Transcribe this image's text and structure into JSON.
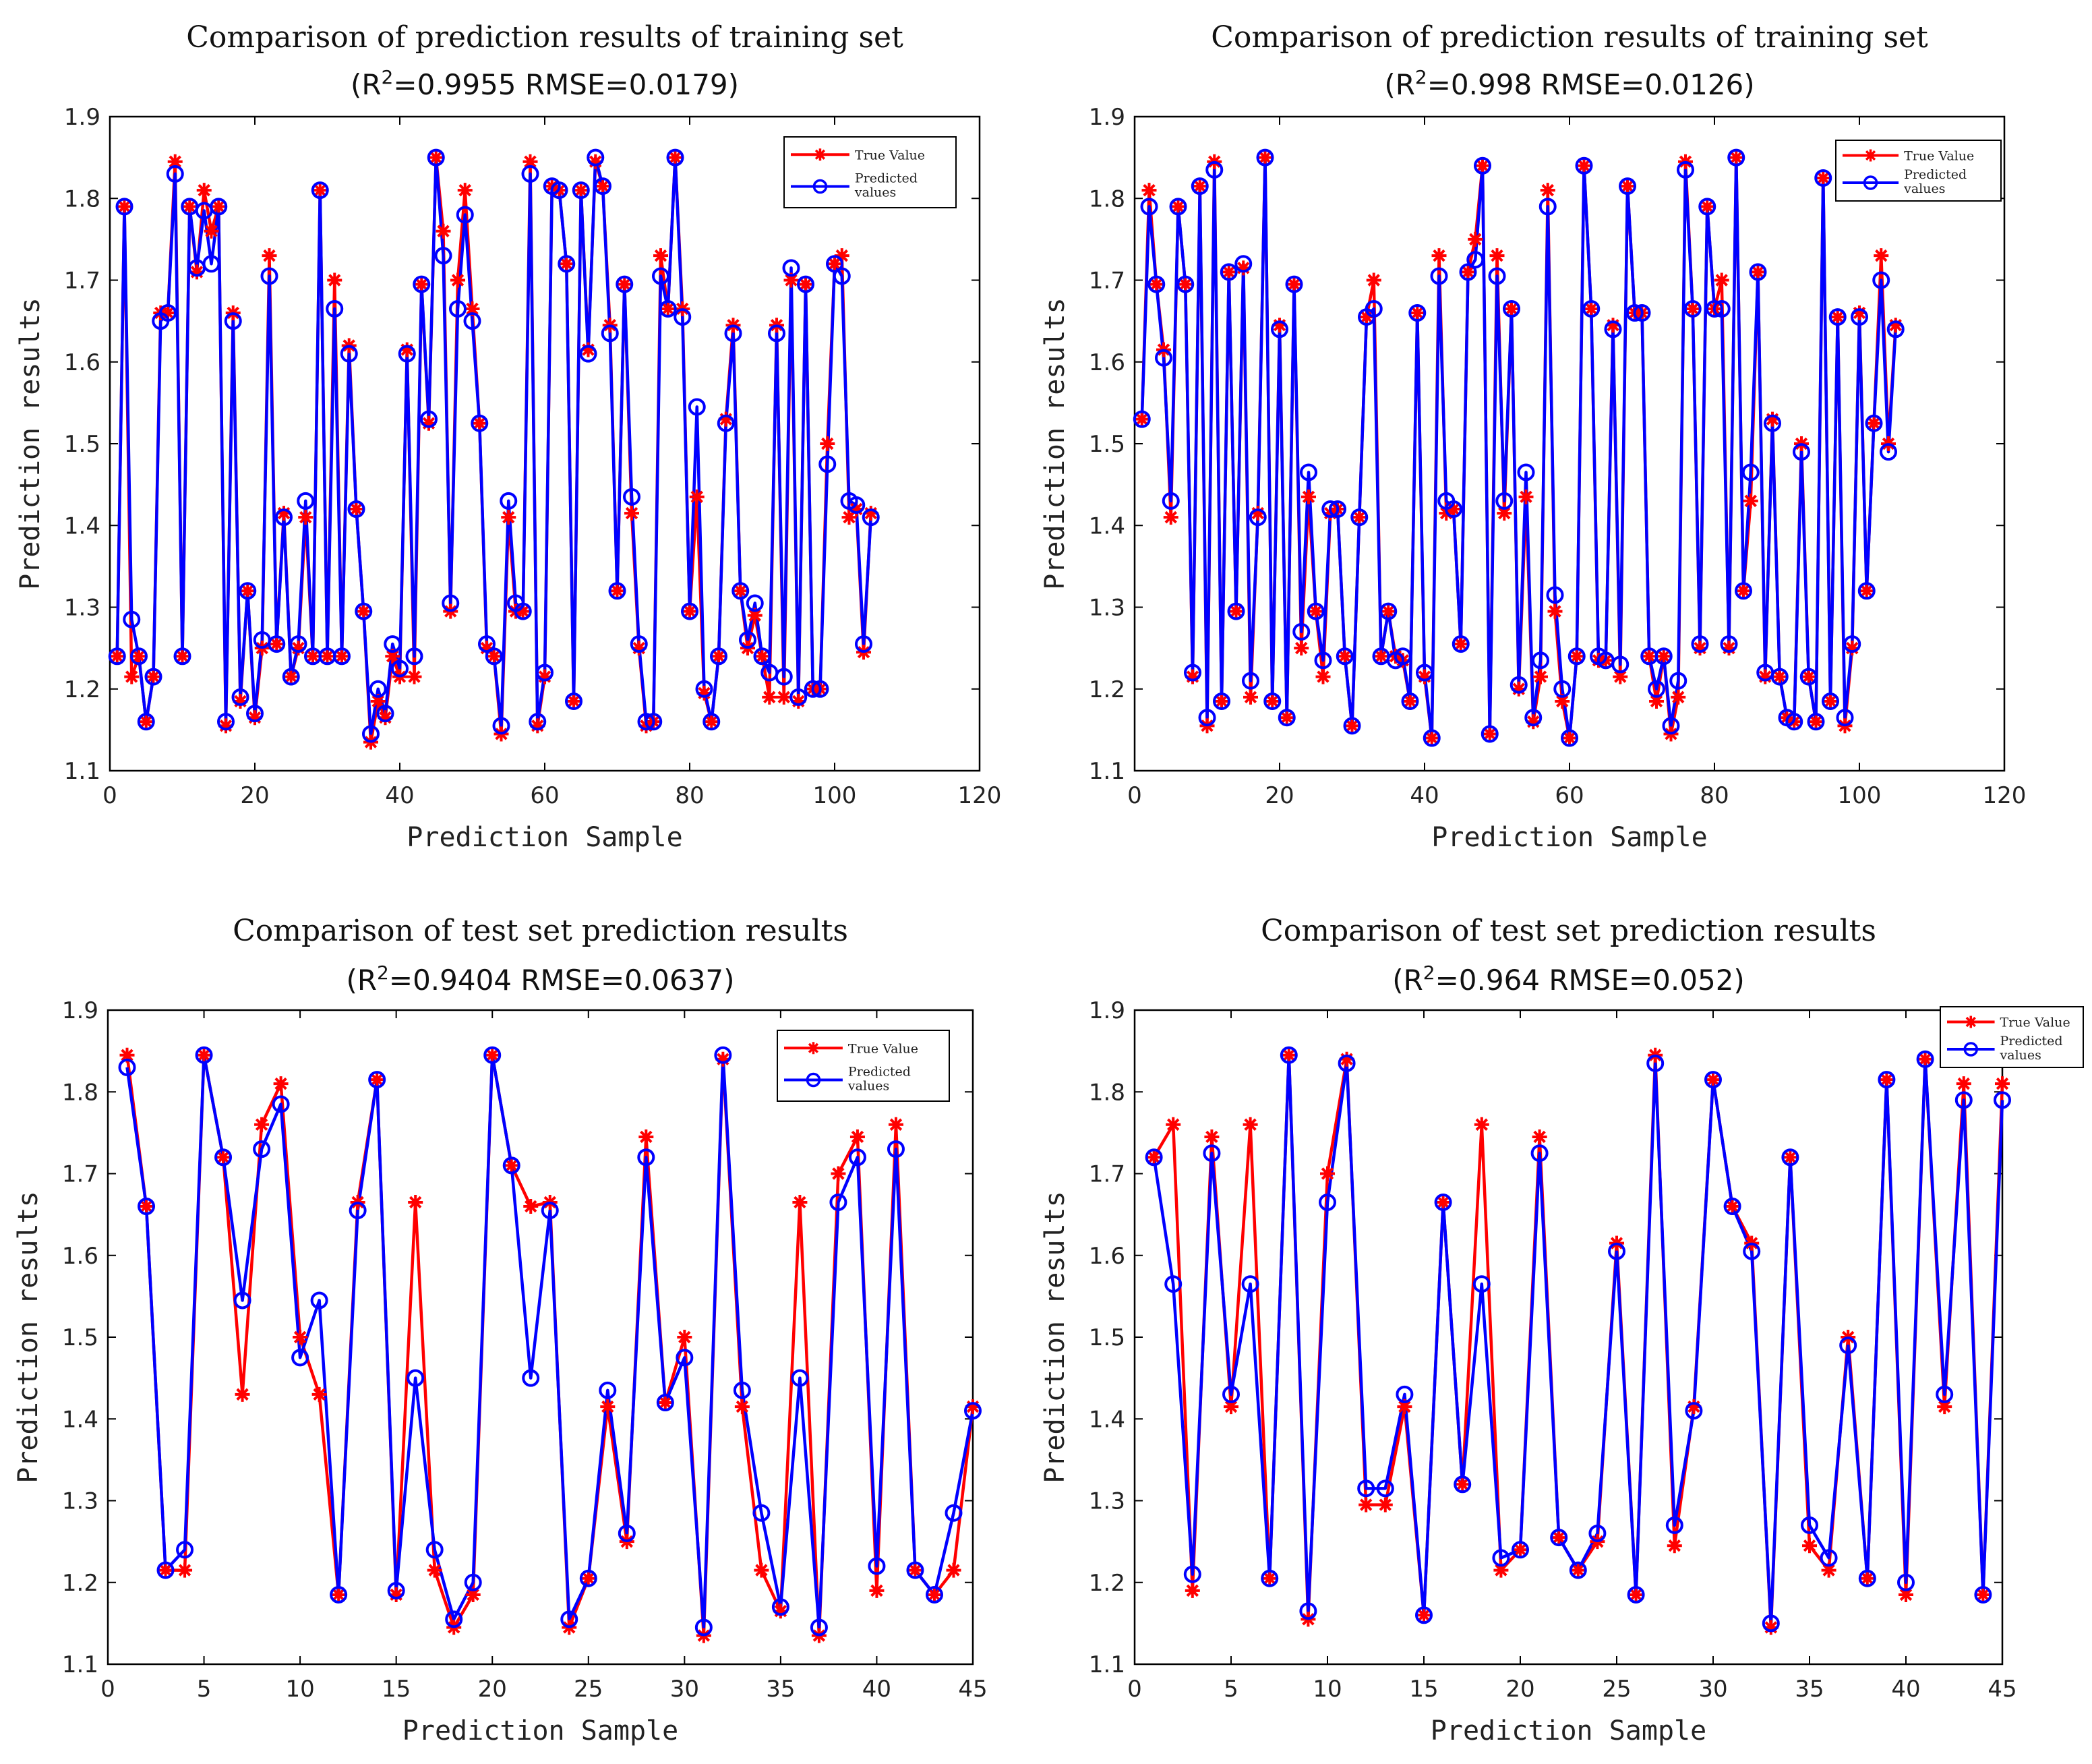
{
  "legend_labels": [
    "True Value",
    "Predicted\nvalues"
  ],
  "colors": {
    "true": "#ff0000",
    "pred": "#0000ff",
    "axis": "#000000"
  },
  "chart_data": [
    {
      "type": "line",
      "title": "Comparison of prediction results of training set",
      "subtitle_prefix": "(R",
      "subtitle_sup": "2",
      "subtitle_rest": "=0.9955 RMSE=0.0179)",
      "xlabel": "Prediction Sample",
      "ylabel": "Prediction results",
      "xlim": [
        0,
        120
      ],
      "ylim": [
        1.1,
        1.9
      ],
      "xticks": [
        0,
        20,
        40,
        60,
        80,
        100,
        120
      ],
      "yticks": [
        1.1,
        1.2,
        1.3,
        1.4,
        1.5,
        1.6,
        1.7,
        1.8,
        1.9
      ],
      "legend": "top-right",
      "series": [
        {
          "name": "True Value",
          "values": [
            1.24,
            1.79,
            1.215,
            1.24,
            1.16,
            1.215,
            1.66,
            1.66,
            1.845,
            1.24,
            1.79,
            1.71,
            1.81,
            1.76,
            1.79,
            1.155,
            1.66,
            1.185,
            1.32,
            1.165,
            1.25,
            1.73,
            1.255,
            1.415,
            1.215,
            1.25,
            1.41,
            1.24,
            1.81,
            1.24,
            1.7,
            1.24,
            1.62,
            1.42,
            1.295,
            1.135,
            1.185,
            1.165,
            1.24,
            1.215,
            1.615,
            1.215,
            1.695,
            1.525,
            1.85,
            1.76,
            1.295,
            1.7,
            1.81,
            1.665,
            1.525,
            1.25,
            1.24,
            1.145,
            1.41,
            1.295,
            1.295,
            1.845,
            1.155,
            1.215,
            1.815,
            1.81,
            1.72,
            1.185,
            1.81,
            1.615,
            1.845,
            1.815,
            1.645,
            1.32,
            1.695,
            1.415,
            1.25,
            1.155,
            1.16,
            1.73,
            1.665,
            1.85,
            1.665,
            1.295,
            1.435,
            1.195,
            1.16,
            1.24,
            1.53,
            1.645,
            1.32,
            1.25,
            1.29,
            1.24,
            1.19,
            1.645,
            1.19,
            1.7,
            1.185,
            1.695,
            1.2,
            1.2,
            1.5,
            1.72,
            1.73,
            1.41,
            1.42,
            1.245,
            1.415
          ]
        },
        {
          "name": "Predicted values",
          "values": [
            1.24,
            1.79,
            1.285,
            1.24,
            1.16,
            1.215,
            1.65,
            1.66,
            1.83,
            1.24,
            1.79,
            1.715,
            1.785,
            1.72,
            1.79,
            1.16,
            1.65,
            1.19,
            1.32,
            1.17,
            1.26,
            1.705,
            1.255,
            1.41,
            1.215,
            1.255,
            1.43,
            1.24,
            1.81,
            1.24,
            1.665,
            1.24,
            1.61,
            1.42,
            1.295,
            1.145,
            1.2,
            1.17,
            1.255,
            1.225,
            1.61,
            1.24,
            1.695,
            1.53,
            1.85,
            1.73,
            1.305,
            1.665,
            1.78,
            1.65,
            1.525,
            1.255,
            1.24,
            1.155,
            1.43,
            1.305,
            1.295,
            1.83,
            1.16,
            1.22,
            1.815,
            1.81,
            1.72,
            1.185,
            1.81,
            1.61,
            1.85,
            1.815,
            1.635,
            1.32,
            1.695,
            1.435,
            1.255,
            1.16,
            1.16,
            1.705,
            1.665,
            1.85,
            1.655,
            1.295,
            1.545,
            1.2,
            1.16,
            1.24,
            1.525,
            1.635,
            1.32,
            1.26,
            1.305,
            1.24,
            1.22,
            1.635,
            1.215,
            1.715,
            1.19,
            1.695,
            1.2,
            1.2,
            1.475,
            1.72,
            1.705,
            1.43,
            1.425,
            1.255,
            1.41
          ]
        }
      ]
    },
    {
      "type": "line",
      "title": "Comparison of prediction results of training set",
      "subtitle_prefix": "(R",
      "subtitle_sup": "2",
      "subtitle_rest": "=0.998 RMSE=0.0126)",
      "xlabel": "Prediction Sample",
      "ylabel": "Prediction results",
      "xlim": [
        0,
        120
      ],
      "ylim": [
        1.1,
        1.9
      ],
      "xticks": [
        0,
        20,
        40,
        60,
        80,
        100,
        120
      ],
      "yticks": [
        1.1,
        1.2,
        1.3,
        1.4,
        1.5,
        1.6,
        1.7,
        1.8,
        1.9
      ],
      "legend": "top-right",
      "series": [
        {
          "name": "True Value",
          "values": [
            1.53,
            1.81,
            1.695,
            1.615,
            1.41,
            1.79,
            1.695,
            1.215,
            1.815,
            1.155,
            1.845,
            1.185,
            1.71,
            1.295,
            1.715,
            1.19,
            1.415,
            1.85,
            1.185,
            1.645,
            1.165,
            1.695,
            1.25,
            1.435,
            1.295,
            1.215,
            1.415,
            1.42,
            1.24,
            1.155,
            1.41,
            1.655,
            1.7,
            1.24,
            1.295,
            1.24,
            1.235,
            1.185,
            1.66,
            1.215,
            1.14,
            1.73,
            1.415,
            1.42,
            1.255,
            1.71,
            1.75,
            1.84,
            1.145,
            1.73,
            1.415,
            1.665,
            1.2,
            1.435,
            1.16,
            1.215,
            1.81,
            1.295,
            1.185,
            1.14,
            1.24,
            1.84,
            1.665,
            1.235,
            1.235,
            1.645,
            1.215,
            1.815,
            1.66,
            1.66,
            1.24,
            1.185,
            1.24,
            1.145,
            1.19,
            1.845,
            1.665,
            1.25,
            1.79,
            1.665,
            1.7,
            1.25,
            1.85,
            1.32,
            1.43,
            1.71,
            1.215,
            1.53,
            1.215,
            1.165,
            1.16,
            1.5,
            1.215,
            1.16,
            1.825,
            1.185,
            1.655,
            1.155,
            1.25,
            1.66,
            1.32,
            1.525,
            1.73,
            1.5,
            1.645
          ]
        },
        {
          "name": "Predicted values",
          "values": [
            1.53,
            1.79,
            1.695,
            1.605,
            1.43,
            1.79,
            1.695,
            1.22,
            1.815,
            1.165,
            1.835,
            1.185,
            1.71,
            1.295,
            1.72,
            1.21,
            1.41,
            1.85,
            1.185,
            1.64,
            1.165,
            1.695,
            1.27,
            1.465,
            1.295,
            1.235,
            1.42,
            1.42,
            1.24,
            1.155,
            1.41,
            1.655,
            1.665,
            1.24,
            1.295,
            1.235,
            1.24,
            1.185,
            1.66,
            1.22,
            1.14,
            1.705,
            1.43,
            1.42,
            1.255,
            1.71,
            1.725,
            1.84,
            1.145,
            1.705,
            1.43,
            1.665,
            1.205,
            1.465,
            1.165,
            1.235,
            1.79,
            1.315,
            1.2,
            1.14,
            1.24,
            1.84,
            1.665,
            1.24,
            1.235,
            1.64,
            1.23,
            1.815,
            1.66,
            1.66,
            1.24,
            1.2,
            1.24,
            1.155,
            1.21,
            1.835,
            1.665,
            1.255,
            1.79,
            1.665,
            1.665,
            1.255,
            1.85,
            1.32,
            1.465,
            1.71,
            1.22,
            1.525,
            1.215,
            1.165,
            1.16,
            1.49,
            1.215,
            1.16,
            1.825,
            1.185,
            1.655,
            1.165,
            1.255,
            1.655,
            1.32,
            1.525,
            1.7,
            1.49,
            1.64
          ]
        }
      ]
    },
    {
      "type": "line",
      "title": "Comparison of test set prediction results",
      "subtitle_prefix": "(R",
      "subtitle_sup": "2",
      "subtitle_rest": "=0.9404 RMSE=0.0637)",
      "xlabel": "Prediction Sample",
      "ylabel": "Prediction results",
      "xlim": [
        0,
        45
      ],
      "ylim": [
        1.1,
        1.9
      ],
      "xticks": [
        0,
        5,
        10,
        15,
        20,
        25,
        30,
        35,
        40,
        45
      ],
      "yticks": [
        1.1,
        1.2,
        1.3,
        1.4,
        1.5,
        1.6,
        1.7,
        1.8,
        1.9
      ],
      "legend": "top-right",
      "series": [
        {
          "name": "True Value",
          "values": [
            1.845,
            1.66,
            1.215,
            1.215,
            1.845,
            1.72,
            1.43,
            1.76,
            1.81,
            1.5,
            1.43,
            1.185,
            1.665,
            1.815,
            1.185,
            1.665,
            1.215,
            1.145,
            1.185,
            1.845,
            1.71,
            1.66,
            1.665,
            1.145,
            1.205,
            1.415,
            1.25,
            1.745,
            1.42,
            1.5,
            1.135,
            1.84,
            1.415,
            1.215,
            1.165,
            1.665,
            1.135,
            1.7,
            1.745,
            1.19,
            1.76,
            1.215,
            1.185,
            1.215,
            1.415
          ]
        },
        {
          "name": "Predicted values",
          "values": [
            1.83,
            1.66,
            1.215,
            1.24,
            1.845,
            1.72,
            1.545,
            1.73,
            1.785,
            1.475,
            1.545,
            1.185,
            1.655,
            1.815,
            1.19,
            1.45,
            1.24,
            1.155,
            1.2,
            1.845,
            1.71,
            1.45,
            1.655,
            1.155,
            1.205,
            1.435,
            1.26,
            1.72,
            1.42,
            1.475,
            1.145,
            1.845,
            1.435,
            1.285,
            1.17,
            1.45,
            1.145,
            1.665,
            1.72,
            1.22,
            1.73,
            1.215,
            1.185,
            1.285,
            1.41
          ]
        }
      ]
    },
    {
      "type": "line",
      "title": "Comparison of test set prediction results",
      "subtitle_prefix": "(R",
      "subtitle_sup": "2",
      "subtitle_rest": "=0.964 RMSE=0.052)",
      "xlabel": "Prediction Sample",
      "ylabel": "Prediction results",
      "xlim": [
        0,
        45
      ],
      "ylim": [
        1.1,
        1.9
      ],
      "xticks": [
        0,
        5,
        10,
        15,
        20,
        25,
        30,
        35,
        40,
        45
      ],
      "yticks": [
        1.1,
        1.2,
        1.3,
        1.4,
        1.5,
        1.6,
        1.7,
        1.8,
        1.9
      ],
      "legend": "top-right",
      "series": [
        {
          "name": "True Value",
          "values": [
            1.72,
            1.76,
            1.19,
            1.745,
            1.415,
            1.76,
            1.205,
            1.845,
            1.155,
            1.7,
            1.84,
            1.295,
            1.295,
            1.415,
            1.16,
            1.665,
            1.32,
            1.76,
            1.215,
            1.24,
            1.745,
            1.255,
            1.215,
            1.25,
            1.615,
            1.185,
            1.845,
            1.245,
            1.415,
            1.815,
            1.66,
            1.615,
            1.145,
            1.72,
            1.245,
            1.215,
            1.5,
            1.205,
            1.815,
            1.185,
            1.84,
            1.415,
            1.81,
            1.185,
            1.81
          ]
        },
        {
          "name": "Predicted values",
          "values": [
            1.72,
            1.565,
            1.21,
            1.725,
            1.43,
            1.565,
            1.205,
            1.845,
            1.165,
            1.665,
            1.835,
            1.315,
            1.315,
            1.43,
            1.16,
            1.665,
            1.32,
            1.565,
            1.23,
            1.24,
            1.725,
            1.255,
            1.215,
            1.26,
            1.605,
            1.185,
            1.835,
            1.27,
            1.41,
            1.815,
            1.66,
            1.605,
            1.15,
            1.72,
            1.27,
            1.23,
            1.49,
            1.205,
            1.815,
            1.2,
            1.84,
            1.43,
            1.79,
            1.185,
            1.79
          ]
        }
      ]
    }
  ]
}
